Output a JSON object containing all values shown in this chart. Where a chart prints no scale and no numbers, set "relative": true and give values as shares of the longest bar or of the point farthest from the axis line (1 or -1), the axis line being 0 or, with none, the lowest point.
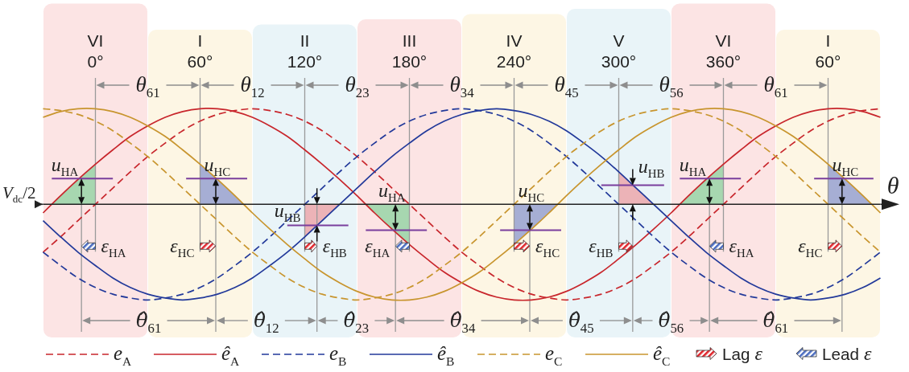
{
  "chart_data": {
    "type": "line",
    "relative": true,
    "xlabel": "θ",
    "ylabel": "V$_{dc}$/2",
    "xlim": [
      -30,
      450
    ],
    "xticks": [
      {
        "value": 0,
        "label": "0°"
      },
      {
        "value": 60,
        "label": "60°"
      },
      {
        "value": 120,
        "label": "120°"
      },
      {
        "value": 180,
        "label": "180°"
      },
      {
        "value": 240,
        "label": "240°"
      },
      {
        "value": 300,
        "label": "300°"
      },
      {
        "value": 360,
        "label": "360°"
      },
      {
        "value": 420,
        "label": null
      }
    ],
    "grid": "x",
    "legend": "bottom",
    "x": [
      -30,
      -20,
      -10,
      0,
      10,
      20,
      30,
      40,
      50,
      60,
      70,
      80,
      90,
      100,
      110,
      120,
      130,
      140,
      150,
      160,
      170,
      180,
      190,
      200,
      210,
      220,
      230,
      240,
      250,
      260,
      270,
      280,
      290,
      300,
      310,
      320,
      330,
      340,
      350,
      360,
      370,
      380,
      390,
      400,
      410,
      420,
      430,
      440,
      450
    ],
    "series": [
      {
        "name": "e$_{A}$",
        "color": "#c8262c",
        "line_style": "dashed",
        "values": [
          -0.5,
          -0.34,
          -0.17,
          0,
          0.17,
          0.34,
          0.5,
          0.64,
          0.77,
          0.87,
          0.94,
          0.98,
          1,
          0.98,
          0.94,
          0.87,
          0.77,
          0.64,
          0.5,
          0.34,
          0.17,
          0,
          -0.17,
          -0.34,
          -0.5,
          -0.64,
          -0.77,
          -0.87,
          -0.94,
          -0.98,
          -1,
          -0.98,
          -0.94,
          -0.87,
          -0.77,
          -0.64,
          -0.5,
          -0.34,
          -0.17,
          0,
          0.17,
          0.34,
          0.5,
          0.64,
          0.77,
          0.87,
          0.94,
          0.98,
          1
        ]
      },
      {
        "name": "ê$_{A}$",
        "color": "#c8262c",
        "line_style": "solid",
        "values": [
          -0.09,
          0.09,
          0.26,
          0.42,
          0.57,
          0.71,
          0.82,
          0.91,
          0.97,
          1,
          1,
          0.97,
          0.91,
          0.82,
          0.71,
          0.57,
          0.42,
          0.26,
          0.09,
          -0.09,
          -0.26,
          -0.42,
          -0.57,
          -0.71,
          -0.82,
          -0.91,
          -0.97,
          -1,
          -1,
          -0.97,
          -0.91,
          -0.82,
          -0.71,
          -0.57,
          -0.42,
          -0.26,
          -0.09,
          0.09,
          0.26,
          0.42,
          0.57,
          0.71,
          0.82,
          0.91,
          0.97,
          1,
          1,
          0.97,
          0.91
        ]
      },
      {
        "name": "e$_{B}$",
        "color": "#22399a",
        "line_style": "dashed",
        "values": [
          -0.5,
          -0.64,
          -0.77,
          -0.87,
          -0.94,
          -0.98,
          -1,
          -0.98,
          -0.94,
          -0.87,
          -0.77,
          -0.64,
          -0.5,
          -0.34,
          -0.17,
          0,
          0.17,
          0.34,
          0.5,
          0.64,
          0.77,
          0.87,
          0.94,
          0.98,
          1,
          0.98,
          0.94,
          0.87,
          0.77,
          0.64,
          0.5,
          0.34,
          0.17,
          0,
          -0.17,
          -0.34,
          -0.5,
          -0.64,
          -0.77,
          -0.87,
          -0.94,
          -0.98,
          -1,
          -0.98,
          -0.94,
          -0.87,
          -0.77,
          -0.64,
          -0.5
        ]
      },
      {
        "name": "ê$_{B}$",
        "color": "#22399a",
        "line_style": "solid",
        "values": [
          -0.17,
          -0.34,
          -0.5,
          -0.64,
          -0.77,
          -0.87,
          -0.94,
          -0.98,
          -1,
          -0.98,
          -0.94,
          -0.87,
          -0.77,
          -0.64,
          -0.5,
          -0.34,
          -0.17,
          0,
          0.17,
          0.34,
          0.5,
          0.64,
          0.77,
          0.87,
          0.94,
          0.98,
          1,
          0.98,
          0.94,
          0.87,
          0.77,
          0.64,
          0.5,
          0.34,
          0.17,
          0,
          -0.17,
          -0.34,
          -0.5,
          -0.64,
          -0.77,
          -0.87,
          -0.94,
          -0.98,
          -1,
          -0.98,
          -0.94,
          -0.87,
          -0.77
        ]
      },
      {
        "name": "e$_{C}$",
        "color": "#c8952e",
        "line_style": "dashed",
        "values": [
          1,
          0.98,
          0.94,
          0.87,
          0.77,
          0.64,
          0.5,
          0.34,
          0.17,
          0,
          -0.17,
          -0.34,
          -0.5,
          -0.64,
          -0.77,
          -0.87,
          -0.94,
          -0.98,
          -1,
          -0.98,
          -0.94,
          -0.87,
          -0.77,
          -0.64,
          -0.5,
          -0.34,
          -0.17,
          0,
          0.17,
          0.34,
          0.5,
          0.64,
          0.77,
          0.87,
          0.94,
          0.98,
          1,
          0.98,
          0.94,
          0.87,
          0.77,
          0.64,
          0.5,
          0.34,
          0.17,
          0,
          -0.17,
          -0.34,
          -0.5
        ]
      },
      {
        "name": "ê$_{C}$",
        "color": "#c8952e",
        "line_style": "solid",
        "values": [
          0.91,
          0.97,
          1,
          1,
          0.97,
          0.91,
          0.82,
          0.71,
          0.57,
          0.42,
          0.26,
          0.09,
          -0.09,
          -0.26,
          -0.42,
          -0.57,
          -0.71,
          -0.82,
          -0.91,
          -0.97,
          -1,
          -1,
          -0.97,
          -0.91,
          -0.82,
          -0.71,
          -0.57,
          -0.42,
          -0.26,
          -0.09,
          0.09,
          0.26,
          0.42,
          0.57,
          0.71,
          0.82,
          0.91,
          0.97,
          1,
          1,
          0.97,
          0.91,
          0.82,
          0.71,
          0.57,
          0.42,
          0.26,
          0.09,
          -0.09
        ]
      },
      {
        "name": "u$_{HA}$",
        "type": "line",
        "color": "#7a3e9d",
        "x": [
          -25,
          10
        ],
        "values": [
          0.27,
          0.27
        ]
      },
      {
        "name": "u$_{HC}$",
        "type": "line",
        "color": "#7a3e9d",
        "x": [
          52,
          87
        ],
        "values": [
          0.27,
          0.27
        ]
      },
      {
        "name": "u$_{HB}$",
        "type": "line",
        "color": "#7a3e9d",
        "x": [
          110,
          145
        ],
        "values": [
          -0.22,
          -0.22
        ]
      },
      {
        "name": "u$_{HA}$",
        "type": "line",
        "color": "#7a3e9d",
        "x": [
          155,
          190
        ],
        "values": [
          -0.27,
          -0.27
        ]
      },
      {
        "name": "u$_{HC}$",
        "type": "line",
        "color": "#7a3e9d",
        "x": [
          232,
          267
        ],
        "values": [
          -0.27,
          -0.27
        ]
      },
      {
        "name": "u$_{HB}$",
        "type": "line",
        "color": "#7a3e9d",
        "x": [
          290,
          326
        ],
        "values": [
          0.2,
          0.2
        ]
      },
      {
        "name": "u$_{HA}$",
        "type": "line",
        "color": "#7a3e9d",
        "x": [
          335,
          370
        ],
        "values": [
          0.27,
          0.27
        ]
      },
      {
        "name": "u$_{HC}$",
        "type": "line",
        "color": "#7a3e9d",
        "x": [
          412,
          446
        ],
        "values": [
          0.27,
          0.27
        ]
      },
      {
        "type": "area",
        "color": "#a7d7b0",
        "x": [
          -25,
          -12.5,
          0
        ],
        "values": [
          0,
          0.22,
          0.42
        ]
      },
      {
        "type": "area",
        "color": "#a6aed4",
        "x": [
          60,
          72.5,
          85
        ],
        "values": [
          0.42,
          0.22,
          0
        ]
      },
      {
        "type": "area",
        "color": "#ecb3b7",
        "x": [
          120,
          130,
          140
        ],
        "values": [
          -0.34,
          -0.17,
          0
        ]
      },
      {
        "type": "area",
        "color": "#a7d7b0",
        "x": [
          155,
          167.5,
          180
        ],
        "values": [
          0,
          -0.22,
          -0.42
        ]
      },
      {
        "type": "area",
        "color": "#a6aed4",
        "x": [
          240,
          252.5,
          265
        ],
        "values": [
          -0.42,
          -0.22,
          0
        ]
      },
      {
        "type": "area",
        "color": "#ecb3b7",
        "x": [
          300,
          310,
          320
        ],
        "values": [
          0.34,
          0.17,
          0
        ]
      },
      {
        "type": "area",
        "color": "#a7d7b0",
        "x": [
          335,
          347.5,
          360
        ],
        "values": [
          0,
          0.22,
          0.42
        ]
      },
      {
        "type": "area",
        "color": "#a6aed4",
        "x": [
          420,
          432.5,
          445
        ],
        "values": [
          0.42,
          0.22,
          0
        ]
      }
    ],
    "bands": [
      {
        "axis": "x",
        "from": -30,
        "to": 30,
        "label": "VI",
        "color": "#fce4e4"
      },
      {
        "axis": "x",
        "from": 30,
        "to": 90,
        "label": "I",
        "color": "#fdf6e4"
      },
      {
        "axis": "x",
        "from": 90,
        "to": 150,
        "label": "II",
        "color": "#e9f4f8"
      },
      {
        "axis": "x",
        "from": 150,
        "to": 210,
        "label": "III",
        "color": "#fce4e4"
      },
      {
        "axis": "x",
        "from": 210,
        "to": 270,
        "label": "IV",
        "color": "#fdf6e4"
      },
      {
        "axis": "x",
        "from": 270,
        "to": 330,
        "label": "V",
        "color": "#e9f4f8"
      },
      {
        "axis": "x",
        "from": 330,
        "to": 390,
        "label": "VI",
        "color": "#fce4e4"
      },
      {
        "axis": "x",
        "from": 390,
        "to": 450,
        "label": "I 60°",
        "color": "#fdf6e4"
      }
    ],
    "ref_lines": [
      {
        "axis": "x",
        "value": -8,
        "label": "ε$_{HA}$",
        "color": "#9a9a9a"
      },
      {
        "axis": "x",
        "value": 69,
        "label": "ε$_{HC}$",
        "color": "#9a9a9a"
      },
      {
        "axis": "x",
        "value": 127,
        "label": "ε$_{HB}$",
        "color": "#9a9a9a"
      },
      {
        "axis": "x",
        "value": 172,
        "label": "ε$_{HA}$",
        "color": "#9a9a9a"
      },
      {
        "axis": "x",
        "value": 249,
        "label": "ε$_{HC}$",
        "color": "#9a9a9a"
      },
      {
        "axis": "x",
        "value": 308,
        "label": "ε$_{HB}$",
        "color": "#9a9a9a"
      },
      {
        "axis": "x",
        "value": 352,
        "label": "ε$_{HA}$",
        "color": "#9a9a9a"
      },
      {
        "axis": "x",
        "value": 428,
        "label": "ε$_{HC}$",
        "color": "#9a9a9a"
      }
    ],
    "annotations": [
      "θ$_{61}$",
      "θ$_{12}$",
      "θ$_{23}$",
      "θ$_{34}$",
      "θ$_{45}$",
      "θ$_{56}$",
      "θ$_{61}$",
      "θ̂$_{61}$",
      "θ̂$_{12}$",
      "θ̂$_{23}$",
      "θ̂$_{34}$",
      "θ̂$_{45}$",
      "θ̂$_{56}$",
      "θ̂$_{61}$",
      "Lag ε",
      "Lead ε"
    ]
  }
}
